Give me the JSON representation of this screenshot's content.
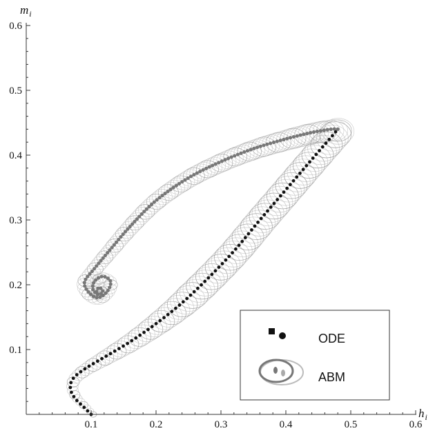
{
  "chart_data": {
    "type": "scatter",
    "x_axis": {
      "label": "h",
      "subscript": "i",
      "ticks": [
        "0.1",
        "0.2",
        "0.3",
        "0.4",
        "0.5",
        "0.6"
      ],
      "range": [
        0,
        0.6
      ]
    },
    "y_axis": {
      "label": "m",
      "subscript": "i",
      "ticks": [
        "0.1",
        "0.2",
        "0.3",
        "0.4",
        "0.5",
        "0.6"
      ],
      "range": [
        0,
        0.6
      ]
    },
    "grid": false,
    "legend": {
      "position": "bottom-right",
      "entries": [
        {
          "label": "ODE",
          "marker": "square-and-filled-circle"
        },
        {
          "label": "ABM",
          "marker": "open-ellipses-with-filled-ellipses"
        }
      ]
    },
    "series": [
      {
        "name": "ODE",
        "color": "#111111",
        "description_points": [
          [
            0.1,
            0.0
          ],
          [
            0.09,
            0.01
          ],
          [
            0.075,
            0.025
          ],
          [
            0.068,
            0.04
          ],
          [
            0.072,
            0.055
          ],
          [
            0.09,
            0.07
          ],
          [
            0.12,
            0.088
          ],
          [
            0.16,
            0.112
          ],
          [
            0.2,
            0.14
          ],
          [
            0.24,
            0.172
          ],
          [
            0.28,
            0.21
          ],
          [
            0.32,
            0.252
          ],
          [
            0.36,
            0.3
          ],
          [
            0.39,
            0.335
          ],
          [
            0.42,
            0.37
          ],
          [
            0.45,
            0.405
          ],
          [
            0.47,
            0.428
          ],
          [
            0.48,
            0.44
          ]
        ]
      },
      {
        "name": "ODE",
        "color": "#777777",
        "description_points": [
          [
            0.48,
            0.44
          ],
          [
            0.47,
            0.44
          ],
          [
            0.44,
            0.435
          ],
          [
            0.4,
            0.425
          ],
          [
            0.35,
            0.41
          ],
          [
            0.3,
            0.39
          ],
          [
            0.25,
            0.365
          ],
          [
            0.2,
            0.33
          ],
          [
            0.16,
            0.29
          ],
          [
            0.13,
            0.255
          ],
          [
            0.105,
            0.225
          ],
          [
            0.09,
            0.205
          ],
          [
            0.095,
            0.19
          ],
          [
            0.11,
            0.18
          ],
          [
            0.125,
            0.19
          ],
          [
            0.13,
            0.205
          ],
          [
            0.118,
            0.213
          ],
          [
            0.105,
            0.205
          ],
          [
            0.103,
            0.192
          ],
          [
            0.112,
            0.185
          ],
          [
            0.118,
            0.19
          ],
          [
            0.112,
            0.196
          ],
          [
            0.108,
            0.188
          ],
          [
            0.11,
            0.185
          ]
        ]
      }
    ]
  },
  "colors": {
    "ode_primary": "#111111",
    "ode_secondary": "#777777",
    "abm_ring": "#bdbdbd",
    "abm_ring_dark": "#888888"
  }
}
